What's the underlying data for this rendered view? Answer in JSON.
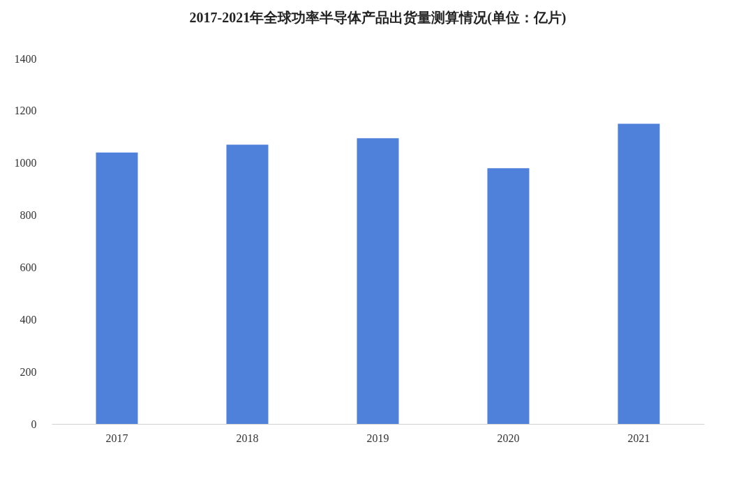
{
  "chart_data": {
    "type": "bar",
    "title": "2017-2021年全球功率半导体产品出货量测算情况(单位：亿片)",
    "categories": [
      "2017",
      "2018",
      "2019",
      "2020",
      "2021"
    ],
    "values": [
      1040,
      1070,
      1095,
      980,
      1150
    ],
    "color": "#4f81db",
    "ylim": [
      0,
      1400
    ],
    "yticks": [
      0,
      200,
      400,
      600,
      800,
      1000,
      1200,
      1400
    ],
    "grid": false
  }
}
